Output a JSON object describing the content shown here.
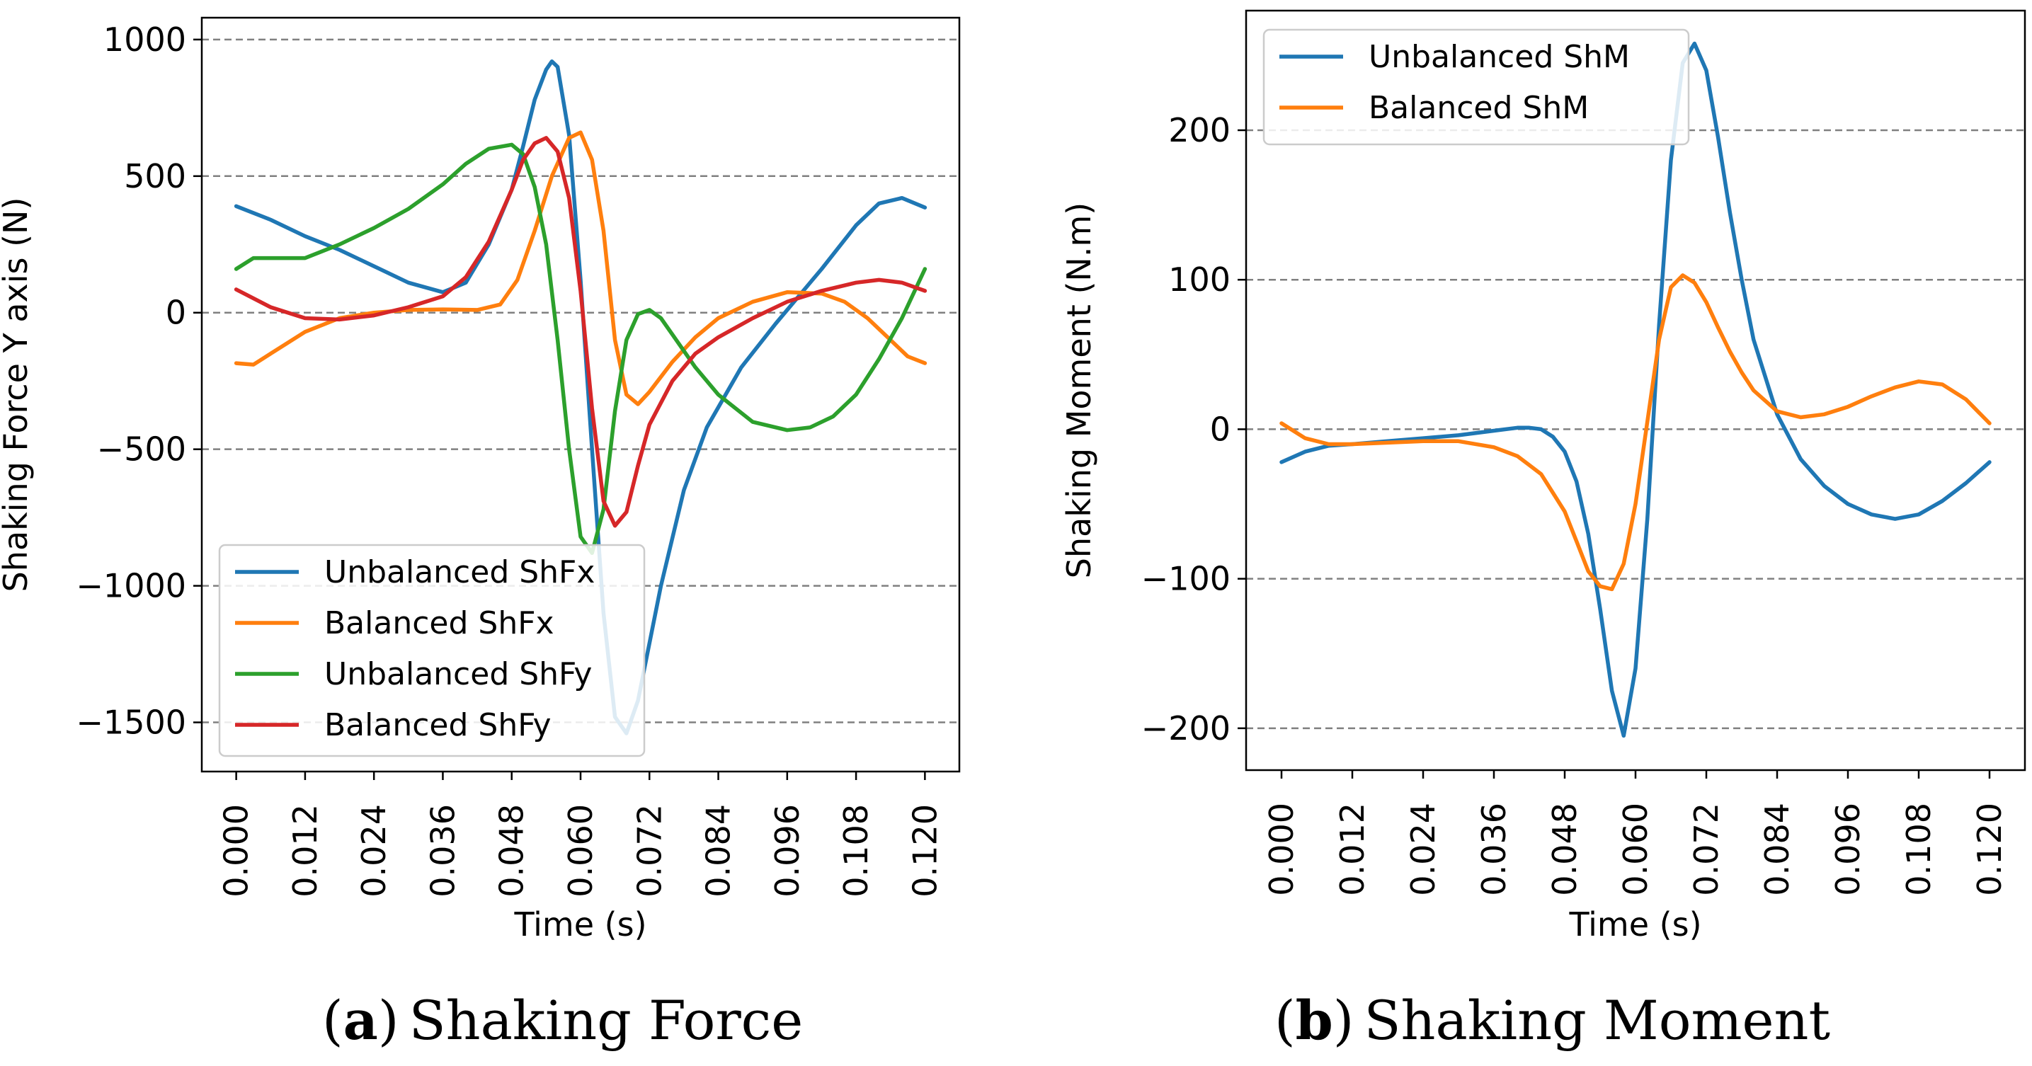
{
  "chart_data": [
    {
      "type": "line",
      "caption": {
        "prefix": "(",
        "letter": "a",
        "suffix": ")",
        "text": "Shaking Force"
      },
      "xlabel": "Time (s)",
      "ylabel": "Shaking Force Y axis (N)",
      "xlim": [
        -0.006,
        0.126
      ],
      "ylim": [
        -1680,
        1080
      ],
      "xticks": [
        0.0,
        0.012,
        0.024,
        0.036,
        0.048,
        0.06,
        0.072,
        0.084,
        0.096,
        0.108,
        0.12
      ],
      "xtick_labels": [
        "0.000",
        "0.012",
        "0.024",
        "0.036",
        "0.048",
        "0.060",
        "0.072",
        "0.084",
        "0.096",
        "0.108",
        "0.120"
      ],
      "yticks": [
        1000,
        500,
        0,
        -500,
        -1000,
        -1500
      ],
      "ytick_labels": [
        "1000",
        "500",
        "0",
        "−500",
        "−1000",
        "−1500"
      ],
      "grid": "horizontal dashed",
      "legend_position": "lower-left",
      "series": [
        {
          "name": "Unbalanced ShFx",
          "color": "#1f77b4",
          "x": [
            0,
            0.006,
            0.012,
            0.018,
            0.024,
            0.03,
            0.036,
            0.04,
            0.044,
            0.048,
            0.05,
            0.052,
            0.054,
            0.055,
            0.056,
            0.058,
            0.06,
            0.062,
            0.064,
            0.066,
            0.068,
            0.07,
            0.074,
            0.078,
            0.082,
            0.088,
            0.094,
            0.098,
            0.102,
            0.108,
            0.112,
            0.116,
            0.12
          ],
          "y": [
            390,
            340,
            280,
            230,
            170,
            110,
            75,
            110,
            250,
            450,
            610,
            780,
            890,
            920,
            900,
            650,
            120,
            -500,
            -1100,
            -1480,
            -1540,
            -1420,
            -1000,
            -650,
            -420,
            -200,
            -40,
            60,
            160,
            320,
            400,
            420,
            385
          ]
        },
        {
          "name": "Balanced ShFx",
          "color": "#ff7f0e",
          "x": [
            0,
            0.003,
            0.006,
            0.012,
            0.018,
            0.024,
            0.03,
            0.036,
            0.042,
            0.046,
            0.049,
            0.052,
            0.055,
            0.058,
            0.06,
            0.062,
            0.064,
            0.066,
            0.068,
            0.07,
            0.072,
            0.076,
            0.08,
            0.084,
            0.09,
            0.096,
            0.102,
            0.106,
            0.11,
            0.114,
            0.117,
            0.12
          ],
          "y": [
            -185,
            -190,
            -150,
            -70,
            -20,
            0,
            10,
            12,
            10,
            30,
            120,
            300,
            500,
            640,
            660,
            560,
            300,
            -100,
            -300,
            -335,
            -290,
            -180,
            -90,
            -20,
            40,
            75,
            70,
            40,
            -20,
            -100,
            -160,
            -185
          ]
        },
        {
          "name": "Unbalanced ShFy",
          "color": "#2ca02c",
          "x": [
            0,
            0.003,
            0.006,
            0.012,
            0.018,
            0.024,
            0.03,
            0.036,
            0.04,
            0.044,
            0.048,
            0.05,
            0.052,
            0.054,
            0.056,
            0.058,
            0.06,
            0.062,
            0.064,
            0.066,
            0.068,
            0.07,
            0.072,
            0.074,
            0.076,
            0.08,
            0.084,
            0.09,
            0.096,
            0.1,
            0.104,
            0.108,
            0.112,
            0.116,
            0.12
          ],
          "y": [
            160,
            200,
            200,
            200,
            250,
            310,
            380,
            470,
            545,
            600,
            615,
            580,
            460,
            250,
            -100,
            -500,
            -820,
            -880,
            -720,
            -360,
            -100,
            -5,
            10,
            -20,
            -80,
            -200,
            -300,
            -400,
            -430,
            -420,
            -380,
            -300,
            -170,
            -20,
            160
          ]
        },
        {
          "name": "Balanced ShFy",
          "color": "#d62728",
          "x": [
            0,
            0.006,
            0.012,
            0.018,
            0.024,
            0.03,
            0.036,
            0.04,
            0.044,
            0.048,
            0.05,
            0.052,
            0.054,
            0.056,
            0.058,
            0.06,
            0.062,
            0.064,
            0.066,
            0.068,
            0.07,
            0.072,
            0.076,
            0.08,
            0.084,
            0.09,
            0.096,
            0.102,
            0.108,
            0.112,
            0.116,
            0.12
          ],
          "y": [
            85,
            20,
            -20,
            -25,
            -10,
            20,
            60,
            130,
            260,
            450,
            560,
            620,
            640,
            590,
            420,
            80,
            -350,
            -690,
            -780,
            -730,
            -560,
            -410,
            -250,
            -150,
            -90,
            -20,
            40,
            80,
            110,
            120,
            110,
            80
          ]
        }
      ]
    },
    {
      "type": "line",
      "caption": {
        "prefix": "(",
        "letter": "b",
        "suffix": ")",
        "text": "Shaking Moment"
      },
      "xlabel": "Time (s)",
      "ylabel": "Shaking Moment (N.m)",
      "xlim": [
        -0.006,
        0.126
      ],
      "ylim": [
        -228,
        280
      ],
      "xticks": [
        0.0,
        0.012,
        0.024,
        0.036,
        0.048,
        0.06,
        0.072,
        0.084,
        0.096,
        0.108,
        0.12
      ],
      "xtick_labels": [
        "0.000",
        "0.012",
        "0.024",
        "0.036",
        "0.048",
        "0.060",
        "0.072",
        "0.084",
        "0.096",
        "0.108",
        "0.120"
      ],
      "yticks": [
        200,
        100,
        0,
        -100,
        -200
      ],
      "ytick_labels": [
        "200",
        "100",
        "0",
        "−100",
        "−200"
      ],
      "grid": "horizontal dashed",
      "legend_position": "upper-left",
      "series": [
        {
          "name": "Unbalanced ShM",
          "color": "#1f77b4",
          "x": [
            0,
            0.004,
            0.008,
            0.012,
            0.018,
            0.024,
            0.03,
            0.036,
            0.04,
            0.042,
            0.044,
            0.046,
            0.048,
            0.05,
            0.052,
            0.054,
            0.056,
            0.058,
            0.06,
            0.062,
            0.064,
            0.066,
            0.068,
            0.07,
            0.072,
            0.074,
            0.076,
            0.078,
            0.08,
            0.084,
            0.088,
            0.092,
            0.096,
            0.1,
            0.104,
            0.108,
            0.112,
            0.116,
            0.12
          ],
          "y": [
            -22,
            -15,
            -11,
            -10,
            -8,
            -6,
            -4,
            -1,
            1,
            1,
            0,
            -5,
            -15,
            -35,
            -70,
            -120,
            -175,
            -205,
            -160,
            -60,
            70,
            180,
            245,
            258,
            240,
            195,
            145,
            100,
            60,
            10,
            -20,
            -38,
            -50,
            -57,
            -60,
            -57,
            -48,
            -36,
            -22
          ]
        },
        {
          "name": "Balanced ShM",
          "color": "#ff7f0e",
          "x": [
            0,
            0.004,
            0.008,
            0.012,
            0.018,
            0.024,
            0.03,
            0.036,
            0.04,
            0.044,
            0.048,
            0.05,
            0.052,
            0.054,
            0.056,
            0.058,
            0.06,
            0.062,
            0.064,
            0.066,
            0.068,
            0.07,
            0.072,
            0.074,
            0.076,
            0.078,
            0.08,
            0.084,
            0.088,
            0.092,
            0.096,
            0.1,
            0.104,
            0.108,
            0.112,
            0.116,
            0.12
          ],
          "y": [
            4,
            -6,
            -10,
            -10,
            -9,
            -8,
            -8,
            -12,
            -18,
            -30,
            -55,
            -75,
            -95,
            -105,
            -107,
            -90,
            -50,
            5,
            60,
            95,
            103,
            98,
            85,
            68,
            52,
            38,
            26,
            12,
            8,
            10,
            15,
            22,
            28,
            32,
            30,
            20,
            4
          ]
        }
      ]
    }
  ]
}
